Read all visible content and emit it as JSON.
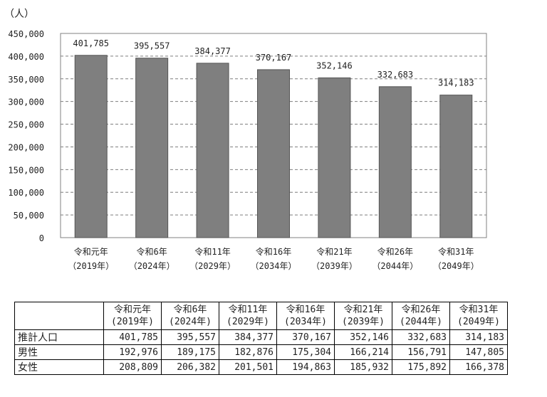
{
  "chart_data": {
    "type": "bar",
    "unit_label": "（人）",
    "categories": [
      [
        "令和元年",
        "（2019年）"
      ],
      [
        "令和6年",
        "（2024年）"
      ],
      [
        "令和11年",
        "（2029年）"
      ],
      [
        "令和16年",
        "（2034年）"
      ],
      [
        "令和21年",
        "（2039年）"
      ],
      [
        "令和26年",
        "（2044年）"
      ],
      [
        "令和31年",
        "（2049年）"
      ]
    ],
    "values": [
      401785,
      395557,
      384377,
      370167,
      352146,
      332683,
      314183
    ],
    "value_labels": [
      "401,785",
      "395,557",
      "384,377",
      "370,167",
      "352,146",
      "332,683",
      "314,183"
    ],
    "ylim": [
      0,
      450000
    ],
    "yticks": [
      0,
      50000,
      100000,
      150000,
      200000,
      250000,
      300000,
      350000,
      400000,
      450000
    ],
    "ytick_labels": [
      "0",
      "50,000",
      "100,000",
      "150,000",
      "200,000",
      "250,000",
      "300,000",
      "350,000",
      "400,000",
      "450,000"
    ],
    "grid": "dashed horizontal",
    "bar_color": "#7f7f7f"
  },
  "table": {
    "header_row1": [
      "令和元年",
      "令和6年",
      "令和11年",
      "令和16年",
      "令和21年",
      "令和26年",
      "令和31年"
    ],
    "header_row2": [
      "(2019年)",
      "(2024年)",
      "(2029年)",
      "(2034年)",
      "(2039年)",
      "(2044年)",
      "(2049年)"
    ],
    "rows": [
      {
        "label": "推計人口",
        "values": [
          "401,785",
          "395,557",
          "384,377",
          "370,167",
          "352,146",
          "332,683",
          "314,183"
        ]
      },
      {
        "label": "男性",
        "values": [
          "192,976",
          "189,175",
          "182,876",
          "175,304",
          "166,214",
          "156,791",
          "147,805"
        ]
      },
      {
        "label": "女性",
        "values": [
          "208,809",
          "206,382",
          "201,501",
          "194,863",
          "185,932",
          "175,892",
          "166,378"
        ]
      }
    ]
  }
}
